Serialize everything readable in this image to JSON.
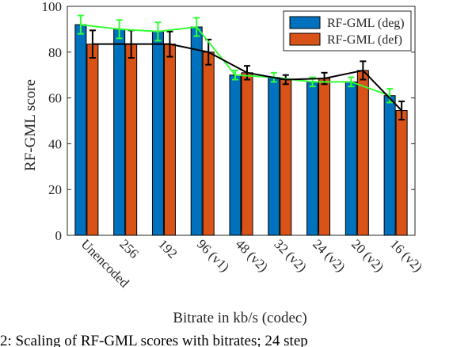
{
  "chart_data": {
    "type": "bar",
    "categories": [
      "Unencoded",
      "256",
      "192",
      "96 (v1)",
      "48 (v2)",
      "32 (v2)",
      "24 (v2)",
      "20 (v2)",
      "16 (v2)"
    ],
    "series": [
      {
        "name": "RF-GML (deg)",
        "color": "#0072BD",
        "values": [
          92,
          90,
          89,
          91,
          70,
          69,
          67,
          67,
          61
        ],
        "errors": [
          4,
          4,
          4,
          4,
          2,
          2,
          2,
          2,
          3
        ],
        "line_color": "#33FF33"
      },
      {
        "name": "RF-GML (def)",
        "color": "#D95319",
        "values": [
          83.5,
          83.5,
          83.5,
          80,
          71,
          68,
          68.5,
          72,
          54.5
        ],
        "errors": [
          6,
          6,
          5.5,
          5.5,
          3,
          2,
          2.5,
          4,
          4
        ],
        "line_color": "#000000"
      }
    ],
    "xlabel": "Bitrate in kb/s (codec)",
    "ylabel": "RF-GML score",
    "ylim": [
      0,
      100
    ],
    "yticks": [
      0,
      20,
      40,
      60,
      80,
      100
    ],
    "legend_position": "top-right",
    "grid": false
  },
  "caption": {
    "text": "2: Scaling of RF-GML scores with bitrates; 24 step"
  }
}
